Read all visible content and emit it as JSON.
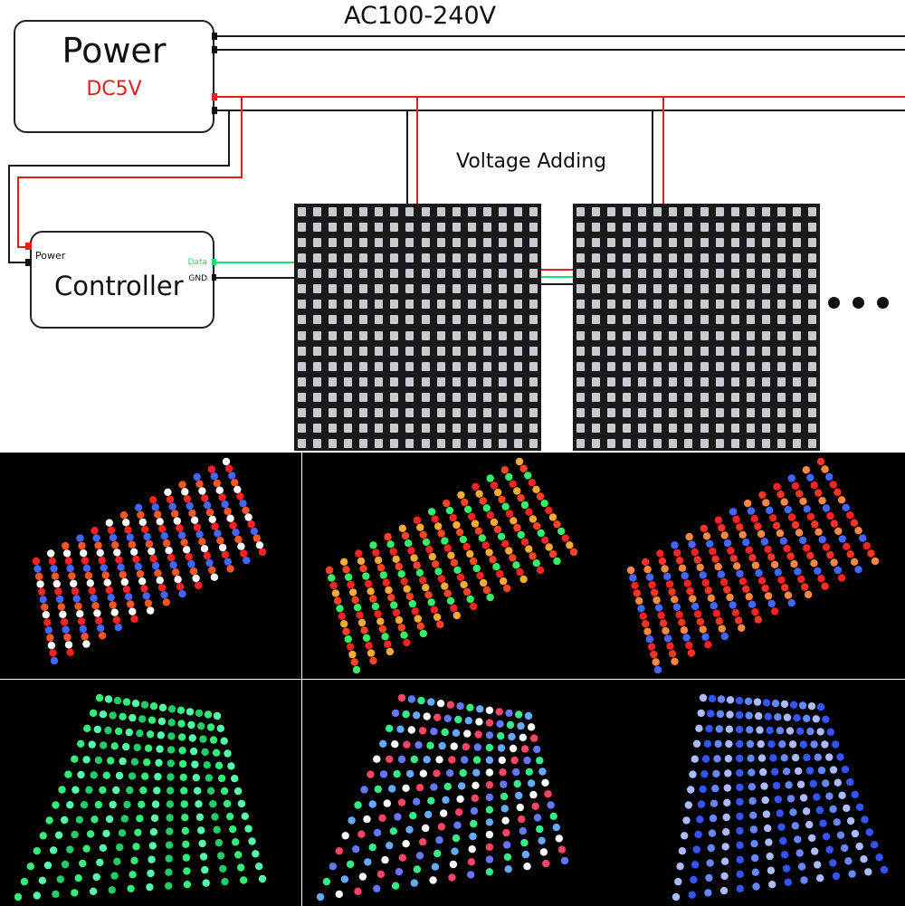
{
  "diagram": {
    "ac_label": "AC100-240V",
    "power_box": {
      "title": "Power",
      "voltage": "DC5V"
    },
    "controller_box": {
      "title": "Controller",
      "power_port": "Power",
      "data_port": "Data",
      "gnd_port": "GND"
    },
    "voltage_label": "Voltage Adding",
    "panel_grid": {
      "rows": 16,
      "cols": 16
    },
    "panel_count_shown": 2,
    "continuation": "more panels ellipsis"
  },
  "colors": {
    "wire_black": "#1a1a1a",
    "wire_red": "#e0201c",
    "wire_green": "#22dd66",
    "dc_text": "#e0201c",
    "data_text": "#22dd66",
    "panel_bg": "#1a1a1a",
    "led": "#c9c9d2"
  },
  "photos": [
    {
      "palette": [
        "#4466ff",
        "#ff5522",
        "#ffffff",
        "#ff2222"
      ]
    },
    {
      "palette": [
        "#ff4422",
        "#33ee66",
        "#ff2222",
        "#ffaa33"
      ]
    },
    {
      "palette": [
        "#ff3322",
        "#ff8844",
        "#4466ff",
        "#ff2222"
      ]
    },
    {
      "palette": [
        "#33ee77",
        "#55ffaa",
        "#22cc66"
      ]
    },
    {
      "palette": [
        "#6677ff",
        "#ffffff",
        "#33ee88",
        "#ff4466",
        "#66aaff"
      ]
    },
    {
      "palette": [
        "#3355ff",
        "#6688ff",
        "#aabbff"
      ]
    }
  ]
}
